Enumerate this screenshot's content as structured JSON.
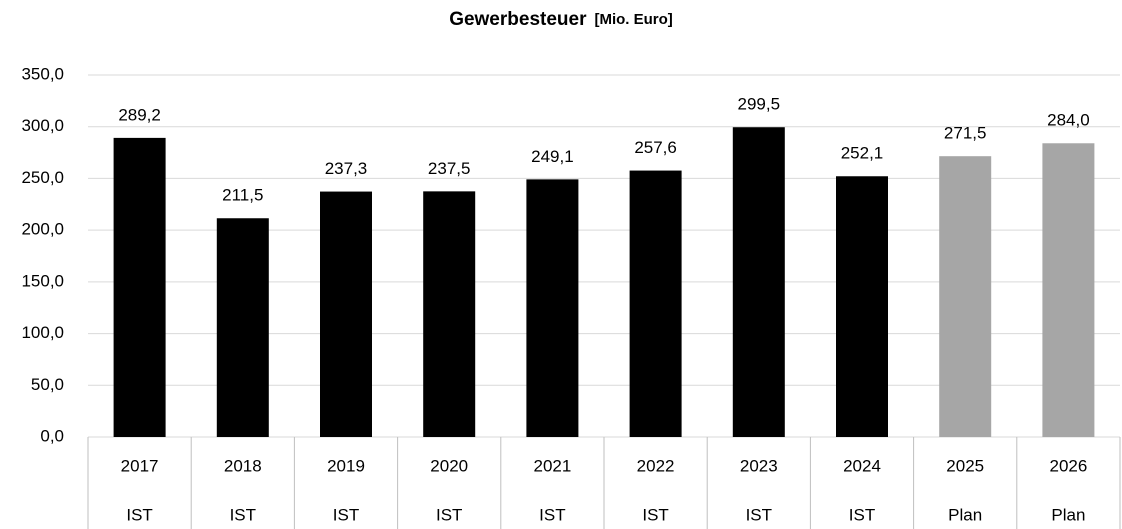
{
  "chart_data": {
    "type": "bar",
    "title": "Gewerbesteuer",
    "title_suffix": "[Mio. Euro]",
    "categories": [
      "2017",
      "2018",
      "2019",
      "2020",
      "2021",
      "2022",
      "2023",
      "2024",
      "2025",
      "2026"
    ],
    "category_groups": [
      "IST",
      "IST",
      "IST",
      "IST",
      "IST",
      "IST",
      "IST",
      "IST",
      "Plan",
      "Plan"
    ],
    "values": [
      289.2,
      211.5,
      237.3,
      237.5,
      249.1,
      257.6,
      299.5,
      252.1,
      271.5,
      284.0
    ],
    "value_labels": [
      "289,2",
      "211,5",
      "237,3",
      "237,5",
      "249,1",
      "257,6",
      "299,5",
      "252,1",
      "271,5",
      "284,0"
    ],
    "colors": [
      "#000000",
      "#000000",
      "#000000",
      "#000000",
      "#000000",
      "#000000",
      "#000000",
      "#000000",
      "#a6a6a6",
      "#a6a6a6"
    ],
    "ylim": [
      0,
      350
    ],
    "yticks": [
      {
        "value": 0,
        "label": "0,0"
      },
      {
        "value": 50,
        "label": "50,0"
      },
      {
        "value": 100,
        "label": "100,0"
      },
      {
        "value": 150,
        "label": "150,0"
      },
      {
        "value": 200,
        "label": "200,0"
      },
      {
        "value": 250,
        "label": "250,0"
      },
      {
        "value": 300,
        "label": "300,0"
      },
      {
        "value": 350,
        "label": "350,0"
      }
    ],
    "grid": true
  }
}
